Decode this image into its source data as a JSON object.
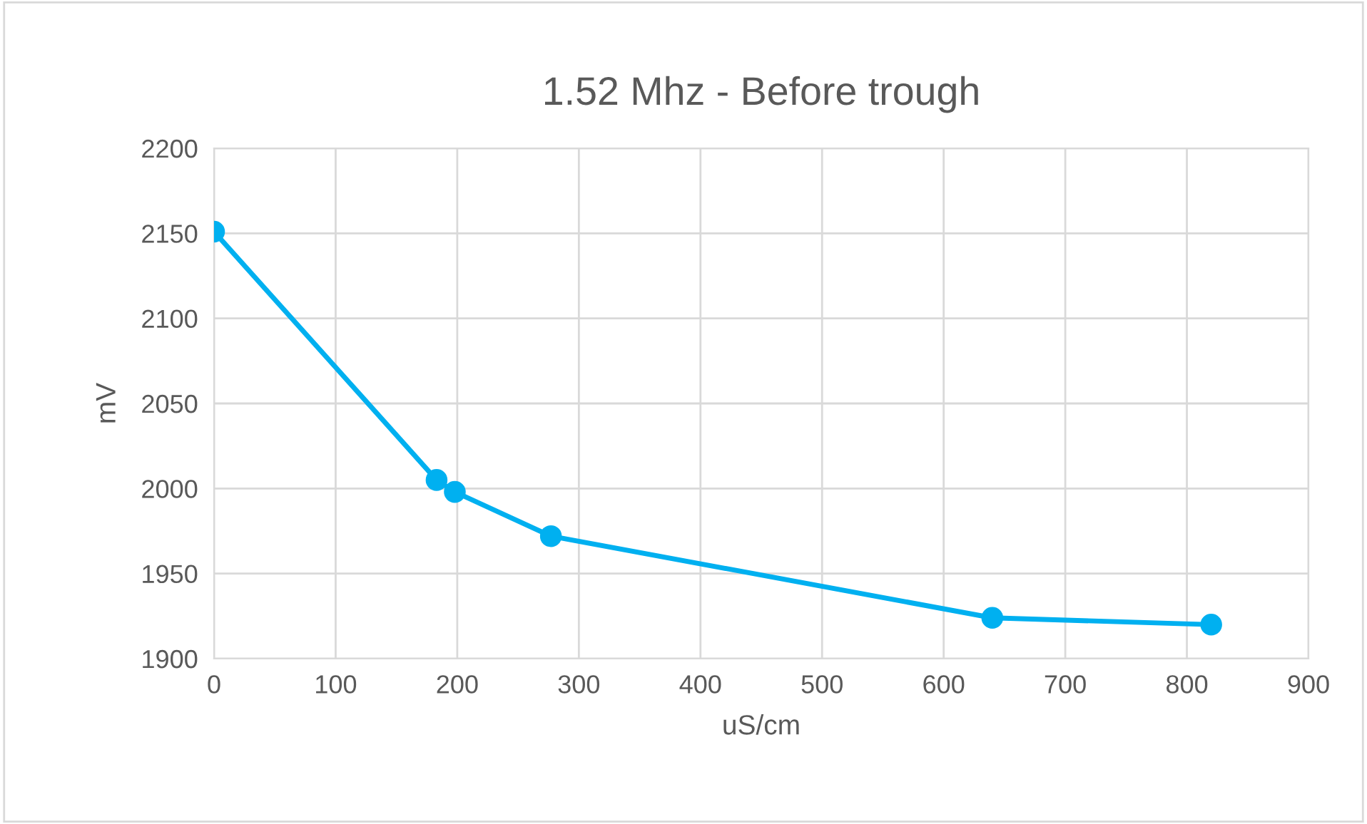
{
  "chart_data": {
    "type": "line",
    "title": "1.52 Mhz - Before trough",
    "xlabel": "uS/cm",
    "ylabel": "mV",
    "x": [
      0,
      183,
      198,
      277,
      640,
      820
    ],
    "series": [
      {
        "color": "#00b0f0",
        "values": [
          2151,
          2005,
          1998,
          1972,
          1924,
          1920
        ]
      }
    ],
    "xlim": [
      0,
      900
    ],
    "xticks": [
      0,
      100,
      200,
      300,
      400,
      500,
      600,
      700,
      800,
      900
    ],
    "ylim": [
      1900,
      2200
    ],
    "yticks": [
      1900,
      1950,
      2000,
      2050,
      2100,
      2150,
      2200
    ],
    "grid": true,
    "marker": "circle",
    "line_style": "solid",
    "legend": false
  }
}
